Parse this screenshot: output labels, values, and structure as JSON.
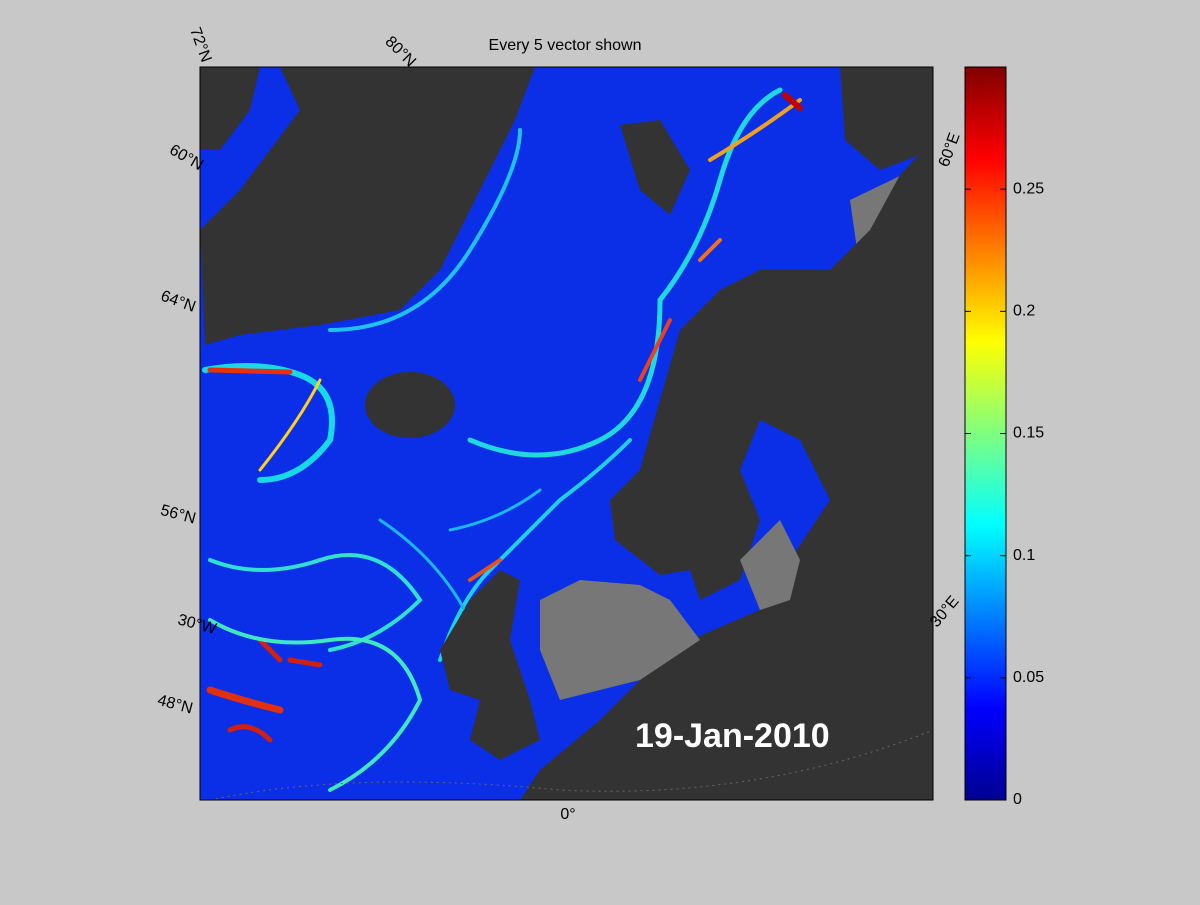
{
  "title": "Every 5 vector shown",
  "date_label": "19-Jan-2010",
  "graticule_labels": [
    "72°N",
    "80°N",
    "60°N",
    "64°N",
    "56°N",
    "30°W",
    "48°N",
    "0°",
    "30°E",
    "60°E"
  ],
  "colorbar": {
    "lim": [
      0,
      0.3
    ],
    "ticks": [
      0,
      0.05,
      0.1,
      0.15,
      0.2,
      0.25
    ]
  }
}
